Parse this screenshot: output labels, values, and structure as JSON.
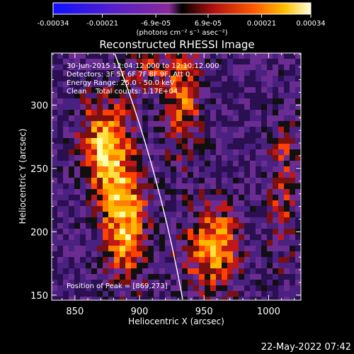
{
  "colorbar": {
    "tick_labels": [
      "-0.00034",
      "-0.00021",
      "-6.9e-05",
      "6.9e-05",
      "0.00021",
      "0.00034"
    ],
    "unit_label": "(photons cm⁻² s⁻¹ asec⁻²)",
    "range": [
      -0.00034,
      0.00034
    ]
  },
  "chart_data": {
    "type": "heatmap",
    "title": "Reconstructed RHESSI Image",
    "xlabel": "Heliocentric X (arcsec)",
    "ylabel": "Heliocentric Y (arcsec)",
    "xlim": [
      832,
      1025
    ],
    "ylim": [
      146,
      341
    ],
    "x_ticks": [
      850,
      900,
      950,
      1000
    ],
    "y_ticks": [
      150,
      200,
      250,
      300
    ],
    "grid": false,
    "annotations": [
      "30-Jun-2015 12:04:12.000 to 12:10:12.000",
      "Detectors: 3F 5F 6F 7F 8F 9F, Att 0",
      "Energy Range: 25.0 - 50.0 keV",
      "Clean    Total counts: 1.17E+04"
    ],
    "position_note": "Position of Peak = [869,273]",
    "peak": [
      869,
      273
    ],
    "limb_visible": true
  },
  "footer": {
    "date": "22-May-2022 07:42"
  },
  "colors": {
    "background": "#000000",
    "limb": "#ffffff"
  }
}
